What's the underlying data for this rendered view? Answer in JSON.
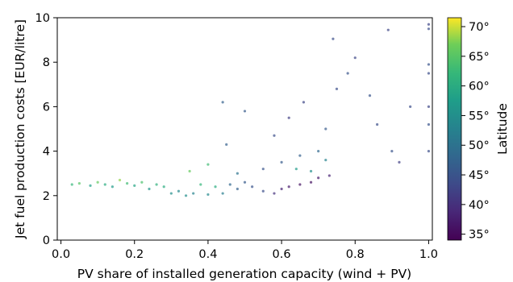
{
  "chart_data": {
    "type": "scatter",
    "title": "",
    "xlabel": "PV share of installed generation capacity (wind + PV)",
    "ylabel": "Jet fuel production costs [EUR/litre]",
    "xlim": [
      -0.01,
      1.01
    ],
    "ylim": [
      0,
      10
    ],
    "xticks": [
      "0.0",
      "0.2",
      "0.4",
      "0.6",
      "0.8",
      "1.0"
    ],
    "yticks": [
      "0",
      "2",
      "4",
      "6",
      "8",
      "10"
    ],
    "grid": false,
    "colorbar": {
      "label": "Latitude",
      "range": [
        34,
        71.5
      ],
      "ticks": [
        "35°",
        "40°",
        "45°",
        "50°",
        "55°",
        "60°",
        "65°",
        "70°"
      ],
      "colormap": "viridis"
    },
    "points": [
      {
        "x": 0.03,
        "y": 2.5,
        "lat": 62
      },
      {
        "x": 0.05,
        "y": 2.55,
        "lat": 65
      },
      {
        "x": 0.08,
        "y": 2.45,
        "lat": 58
      },
      {
        "x": 0.1,
        "y": 2.6,
        "lat": 66
      },
      {
        "x": 0.12,
        "y": 2.5,
        "lat": 60
      },
      {
        "x": 0.14,
        "y": 2.4,
        "lat": 57
      },
      {
        "x": 0.16,
        "y": 2.7,
        "lat": 68
      },
      {
        "x": 0.18,
        "y": 2.55,
        "lat": 63
      },
      {
        "x": 0.2,
        "y": 2.45,
        "lat": 59
      },
      {
        "x": 0.22,
        "y": 2.6,
        "lat": 64
      },
      {
        "x": 0.24,
        "y": 2.3,
        "lat": 56
      },
      {
        "x": 0.26,
        "y": 2.5,
        "lat": 61
      },
      {
        "x": 0.28,
        "y": 2.4,
        "lat": 60
      },
      {
        "x": 0.3,
        "y": 2.1,
        "lat": 55
      },
      {
        "x": 0.32,
        "y": 2.2,
        "lat": 54
      },
      {
        "x": 0.34,
        "y": 2.0,
        "lat": 55
      },
      {
        "x": 0.36,
        "y": 2.1,
        "lat": 53
      },
      {
        "x": 0.38,
        "y": 2.5,
        "lat": 62
      },
      {
        "x": 0.4,
        "y": 2.05,
        "lat": 54
      },
      {
        "x": 0.42,
        "y": 2.4,
        "lat": 60
      },
      {
        "x": 0.44,
        "y": 2.1,
        "lat": 52
      },
      {
        "x": 0.46,
        "y": 2.5,
        "lat": 48
      },
      {
        "x": 0.48,
        "y": 2.3,
        "lat": 47
      },
      {
        "x": 0.5,
        "y": 2.6,
        "lat": 46
      },
      {
        "x": 0.52,
        "y": 2.4,
        "lat": 45
      },
      {
        "x": 0.55,
        "y": 2.2,
        "lat": 44
      },
      {
        "x": 0.58,
        "y": 2.1,
        "lat": 40
      },
      {
        "x": 0.6,
        "y": 2.3,
        "lat": 38
      },
      {
        "x": 0.62,
        "y": 2.4,
        "lat": 37
      },
      {
        "x": 0.65,
        "y": 2.5,
        "lat": 36
      },
      {
        "x": 0.68,
        "y": 2.6,
        "lat": 36
      },
      {
        "x": 0.7,
        "y": 2.8,
        "lat": 37
      },
      {
        "x": 0.73,
        "y": 2.9,
        "lat": 38
      },
      {
        "x": 0.55,
        "y": 3.2,
        "lat": 45
      },
      {
        "x": 0.6,
        "y": 3.5,
        "lat": 46
      },
      {
        "x": 0.65,
        "y": 3.8,
        "lat": 47
      },
      {
        "x": 0.7,
        "y": 4.0,
        "lat": 48
      },
      {
        "x": 0.48,
        "y": 3.0,
        "lat": 50
      },
      {
        "x": 0.45,
        "y": 4.3,
        "lat": 47
      },
      {
        "x": 0.58,
        "y": 4.7,
        "lat": 44
      },
      {
        "x": 0.62,
        "y": 5.5,
        "lat": 42
      },
      {
        "x": 0.66,
        "y": 6.2,
        "lat": 43
      },
      {
        "x": 0.72,
        "y": 5.0,
        "lat": 46
      },
      {
        "x": 0.75,
        "y": 6.8,
        "lat": 44
      },
      {
        "x": 0.78,
        "y": 7.5,
        "lat": 45
      },
      {
        "x": 0.8,
        "y": 8.2,
        "lat": 43
      },
      {
        "x": 0.74,
        "y": 9.05,
        "lat": 44
      },
      {
        "x": 0.89,
        "y": 9.45,
        "lat": 43
      },
      {
        "x": 0.84,
        "y": 6.5,
        "lat": 45
      },
      {
        "x": 0.86,
        "y": 5.2,
        "lat": 44
      },
      {
        "x": 0.9,
        "y": 4.0,
        "lat": 45
      },
      {
        "x": 0.92,
        "y": 3.5,
        "lat": 42
      },
      {
        "x": 0.95,
        "y": 6.0,
        "lat": 44
      },
      {
        "x": 1.0,
        "y": 9.7,
        "lat": 43
      },
      {
        "x": 1.0,
        "y": 9.5,
        "lat": 44
      },
      {
        "x": 1.0,
        "y": 7.9,
        "lat": 45
      },
      {
        "x": 1.0,
        "y": 7.5,
        "lat": 44
      },
      {
        "x": 1.0,
        "y": 6.0,
        "lat": 43
      },
      {
        "x": 1.0,
        "y": 5.2,
        "lat": 45
      },
      {
        "x": 1.0,
        "y": 4.0,
        "lat": 44
      },
      {
        "x": 0.44,
        "y": 6.2,
        "lat": 47
      },
      {
        "x": 0.5,
        "y": 5.8,
        "lat": 46
      },
      {
        "x": 0.4,
        "y": 3.4,
        "lat": 63
      },
      {
        "x": 0.35,
        "y": 3.1,
        "lat": 66
      },
      {
        "x": 0.64,
        "y": 3.2,
        "lat": 57
      },
      {
        "x": 0.68,
        "y": 3.1,
        "lat": 55
      },
      {
        "x": 0.72,
        "y": 3.6,
        "lat": 53
      }
    ]
  }
}
